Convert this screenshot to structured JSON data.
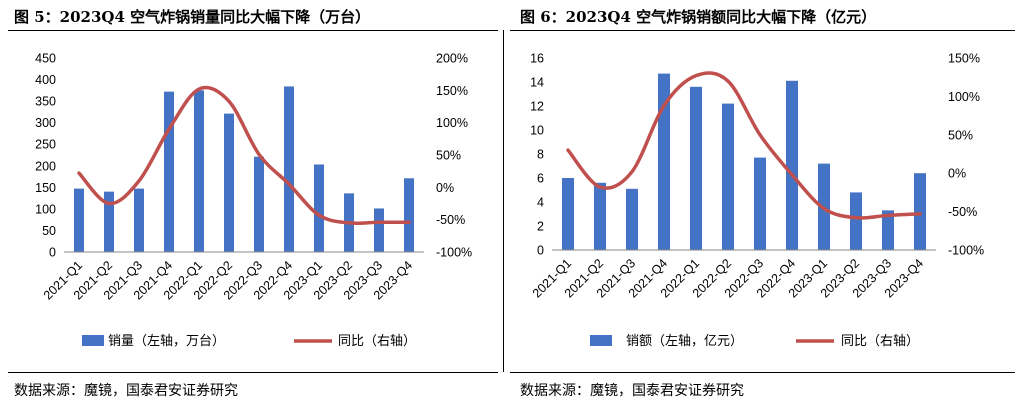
{
  "charts": [
    {
      "title": "图 5：2023Q4 空气炸锅销量同比大幅下降（万台）",
      "source": "数据来源：魔镜，国泰君安证券研究"
    },
    {
      "title": "图 6：2023Q4 空气炸锅销额同比大幅下降（亿元）",
      "source": "数据来源：魔镜，国泰君安证券研究"
    }
  ],
  "colors": {
    "bar": "#4472C4",
    "line": "#C0504D",
    "axis": "#000000"
  },
  "chart_data": [
    {
      "type": "bar",
      "title": "图 5：2023Q4 空气炸锅销量同比大幅下降（万台）",
      "xlabel": "",
      "ylabel": "",
      "categories": [
        "2021-Q1",
        "2021-Q2",
        "2021-Q3",
        "2021-Q4",
        "2022-Q1",
        "2022-Q2",
        "2022-Q3",
        "2022-Q4",
        "2023-Q1",
        "2023-Q2",
        "2023-Q3",
        "2023-Q4"
      ],
      "series": [
        {
          "name": "销量（左轴，万台）",
          "type": "bar",
          "axis": "left",
          "values": [
            147,
            140,
            147,
            372,
            375,
            321,
            221,
            384,
            203,
            136,
            101,
            171
          ]
        },
        {
          "name": "同比（右轴）",
          "type": "line",
          "axis": "right",
          "values": [
            22,
            -25,
            10,
            90,
            152,
            133,
            51,
            5,
            -43,
            -55,
            -54,
            -54
          ]
        }
      ],
      "ylim_left": [
        0,
        450
      ],
      "yticks_left": [
        0,
        50,
        100,
        150,
        200,
        250,
        300,
        350,
        400,
        450
      ],
      "ytick_labels_left": [
        "0",
        "50",
        "100",
        "150",
        "200",
        "250",
        "300",
        "350",
        "400",
        "450"
      ],
      "ylim_right": [
        -100,
        200
      ],
      "yticks_right": [
        -100,
        -50,
        0,
        50,
        100,
        150,
        200
      ],
      "ytick_labels_right": [
        "-100%",
        "-50%",
        "0%",
        "50%",
        "100%",
        "150%",
        "200%"
      ],
      "grid": false,
      "legend_position": "bottom"
    },
    {
      "type": "bar",
      "title": "图 6：2023Q4 空气炸锅销额同比大幅下降（亿元）",
      "xlabel": "",
      "ylabel": "",
      "categories": [
        "2021-Q1",
        "2021-Q2",
        "2021-Q3",
        "2021-Q4",
        "2022-Q1",
        "2022-Q2",
        "2022-Q3",
        "2022-Q4",
        "2023-Q1",
        "2023-Q2",
        "2023-Q3",
        "2023-Q4"
      ],
      "series": [
        {
          "name": "销额（左轴，亿元）",
          "type": "bar",
          "axis": "left",
          "values": [
            6.0,
            5.6,
            5.1,
            14.7,
            13.6,
            12.2,
            7.7,
            14.1,
            7.2,
            4.8,
            3.3,
            6.4
          ]
        },
        {
          "name": "同比（右轴）",
          "type": "line",
          "axis": "right",
          "values": [
            30,
            -18,
            2,
            88,
            127,
            120,
            50,
            -2,
            -46,
            -58,
            -55,
            -53
          ]
        }
      ],
      "ylim_left": [
        0,
        16
      ],
      "yticks_left": [
        0,
        2,
        4,
        6,
        8,
        10,
        12,
        14,
        16
      ],
      "ytick_labels_left": [
        "0",
        "2",
        "4",
        "6",
        "8",
        "10",
        "12",
        "14",
        "16"
      ],
      "ylim_right": [
        -100,
        150
      ],
      "yticks_right": [
        -100,
        -50,
        0,
        50,
        100,
        150
      ],
      "ytick_labels_right": [
        "-100%",
        "-50%",
        "0%",
        "50%",
        "100%",
        "150%"
      ],
      "grid": false,
      "legend_position": "bottom"
    }
  ]
}
